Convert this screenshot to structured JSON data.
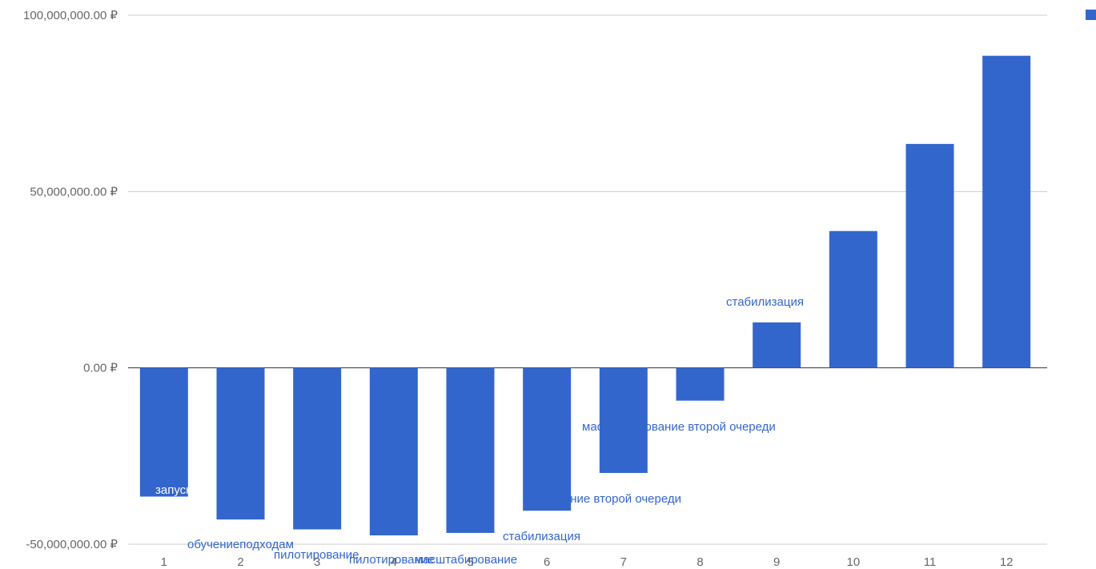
{
  "colors": {
    "bar": "#3366cc",
    "grid": "#cccccc",
    "zero_line": "#333333",
    "tick_text": "#666666",
    "annotation_text": "#3366cc",
    "annotation_text_inside": "#ffffff"
  },
  "chart_data": {
    "type": "bar",
    "categories": [
      "1",
      "2",
      "3",
      "4",
      "5",
      "6",
      "7",
      "8",
      "9",
      "10",
      "11",
      "12"
    ],
    "values": [
      -36500000,
      -43000000,
      -45800000,
      -47500000,
      -46800000,
      -40500000,
      -29800000,
      -9300000,
      12900000,
      38800000,
      63500000,
      88500000
    ],
    "ylim": [
      -50000000,
      100000000
    ],
    "yticks": [
      "100,000,000.00 ₽",
      "50,000,000.00 ₽",
      "0.00 ₽",
      "-50,000,000.00 ₽"
    ],
    "ytick_values": [
      100000000,
      50000000,
      0,
      -50000000
    ],
    "grid": true,
    "legend_position": "top-right",
    "annotations": [
      {
        "bar": 1,
        "text": "запуск"
      },
      {
        "bar": 2,
        "text": "обучениеподходам"
      },
      {
        "bar": 3,
        "text": "пилотирование"
      },
      {
        "bar": 4,
        "text": "пилотирование"
      },
      {
        "bar": 5,
        "text": "масштабирование"
      },
      {
        "bar": 6,
        "text": "стабилизация"
      },
      {
        "bar": 6,
        "text": "обучение второй очереди"
      },
      {
        "bar": 7,
        "text": "масштабирование второй очереди"
      },
      {
        "bar": 9,
        "text": "стабилизация"
      }
    ]
  }
}
